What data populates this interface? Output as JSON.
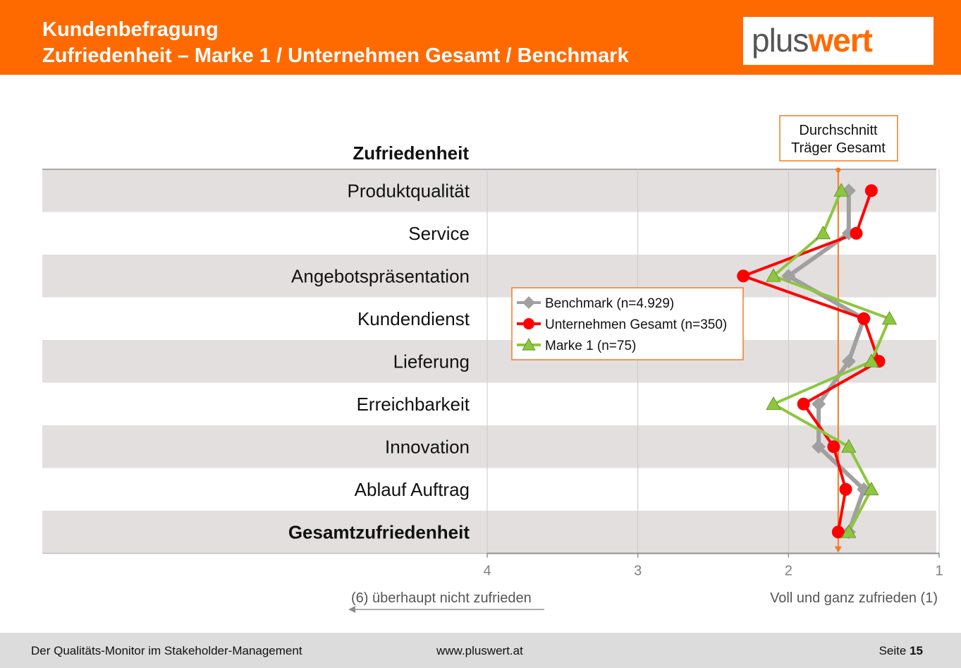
{
  "header": {
    "title_line1": "Kundenbefragung",
    "title_line2": "Zufriedenheit –  Marke 1 / Unternehmen  Gesamt / Benchmark",
    "logo_plus": "plus",
    "logo_wert": "wert"
  },
  "footer": {
    "left": "Der Qualitäts-Monitor im Stakeholder-Management",
    "center": "www.pluswert.at",
    "page_label": "Seite",
    "page_number": "15"
  },
  "chart_data": {
    "type": "line",
    "title": "Zufriedenheit",
    "orientation": "horizontal",
    "categories": [
      "Produktqualität",
      "Service",
      "Angebotspräsentation",
      "Kundendienst",
      "Lieferung",
      "Erreichbarkeit",
      "Innovation",
      "Ablauf Auftrag",
      "Gesamtzufriedenheit"
    ],
    "bold_categories": [
      "Gesamtzufriedenheit"
    ],
    "x_axis": {
      "range": [
        4,
        1
      ],
      "reversed": true,
      "ticks": [
        4,
        3,
        2,
        1
      ]
    },
    "left_scale_label": "(6) überhaupt nicht zufrieden",
    "right_scale_label": "Voll und ganz zufrieden (1)",
    "reference_line": {
      "value": 1.67,
      "label_line1": "Durchschnitt",
      "label_line2": "Träger Gesamt",
      "color": "#f07d23"
    },
    "series": [
      {
        "name": "Benchmark (n=4.929)",
        "color": "#a0a0a0",
        "marker": "diamond",
        "values": [
          1.6,
          1.6,
          2.0,
          1.5,
          1.6,
          1.8,
          1.8,
          1.5,
          1.6
        ]
      },
      {
        "name": "Unternehmen Gesamt  (n=350)",
        "color": "#ff0000",
        "marker": "circle",
        "values": [
          1.45,
          1.55,
          2.3,
          1.5,
          1.4,
          1.9,
          1.7,
          1.62,
          1.67
        ]
      },
      {
        "name": "Marke 1 (n=75)",
        "color": "#8dc63f",
        "marker": "triangle",
        "values": [
          1.65,
          1.77,
          2.1,
          1.33,
          1.45,
          2.1,
          1.6,
          1.45,
          1.6
        ]
      }
    ],
    "legend_position": "center-right",
    "grid": true,
    "row_band_color": "#e3dfdf"
  }
}
